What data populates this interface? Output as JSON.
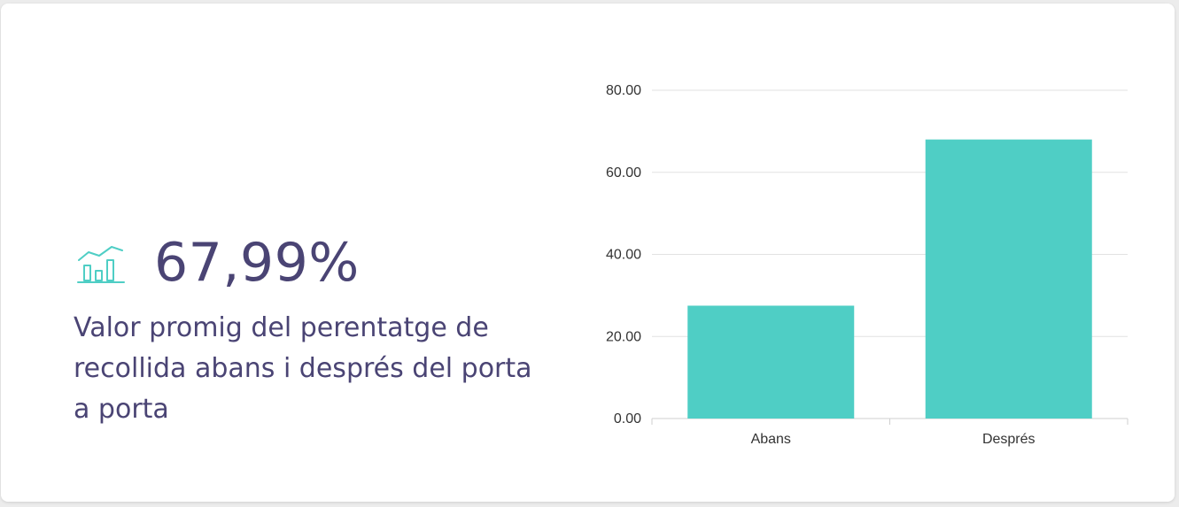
{
  "kpi": {
    "value": "67,99%",
    "description": "Valor promig del perentatge de recollida abans i després del porta a porta",
    "icon": "bar-chart-trend-icon"
  },
  "colors": {
    "accent": "#4fcec5",
    "text": "#4a4474",
    "grid": "#e2e2e2"
  },
  "chart_data": {
    "type": "bar",
    "categories": [
      "Abans",
      "Després"
    ],
    "values": [
      27.5,
      68
    ],
    "ylim": [
      0,
      80
    ],
    "yticks": [
      "0.00",
      "20.00",
      "40.00",
      "60.00",
      "80.00"
    ],
    "title": "",
    "xlabel": "",
    "ylabel": "",
    "grid": true
  }
}
